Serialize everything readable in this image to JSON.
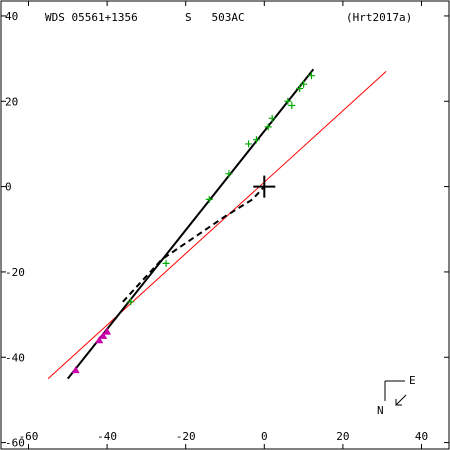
{
  "header": {
    "wds": "WDS 05561+1356",
    "components": "S   503AC",
    "reference": "(Hrt2017a)"
  },
  "compass": {
    "east": "E",
    "north": "N"
  },
  "colors": {
    "frame": "#000000",
    "ref_line": "#ff0000",
    "points": "#00aa00",
    "recent": "#cc00aa",
    "primary": "#000000"
  },
  "chart_data": {
    "type": "scatter",
    "xlim": [
      -67,
      47
    ],
    "ylim": [
      -61.5,
      43.5
    ],
    "xticks": [
      -60,
      -40,
      -20,
      0,
      20,
      40
    ],
    "yticks": [
      40,
      20,
      0,
      -20,
      -40,
      -60
    ],
    "xtick_labels": [
      "-60",
      "-40",
      "-20",
      "0",
      "20",
      "40"
    ],
    "ytick_labels": [
      "40",
      "20",
      "0",
      "-20",
      "-40",
      "-60"
    ],
    "grid": false,
    "primary": {
      "x": 0,
      "y": 0
    },
    "reference_line": {
      "x": [
        -55,
        31
      ],
      "y": [
        -45,
        27
      ]
    },
    "fit_line": {
      "x": [
        -50,
        12.5
      ],
      "y": [
        -45,
        27.5
      ]
    },
    "dashed_path": {
      "x": [
        -36,
        -26,
        -18,
        -10,
        -3,
        0
      ],
      "y": [
        -27,
        -17,
        -12,
        -7,
        -3,
        0
      ]
    },
    "series": [
      {
        "marker": "plus",
        "x": [
          12,
          10,
          9,
          7,
          6,
          2,
          1,
          -2,
          -4,
          -9,
          -14,
          -25,
          -34
        ],
        "y": [
          26,
          24,
          23,
          19,
          20,
          16,
          14,
          11,
          10,
          3,
          -3,
          -18,
          -27
        ]
      },
      {
        "marker": "triangle",
        "x": [
          -48,
          -42,
          -41,
          -40
        ],
        "y": [
          -43,
          -36,
          -35,
          -34
        ]
      }
    ]
  }
}
